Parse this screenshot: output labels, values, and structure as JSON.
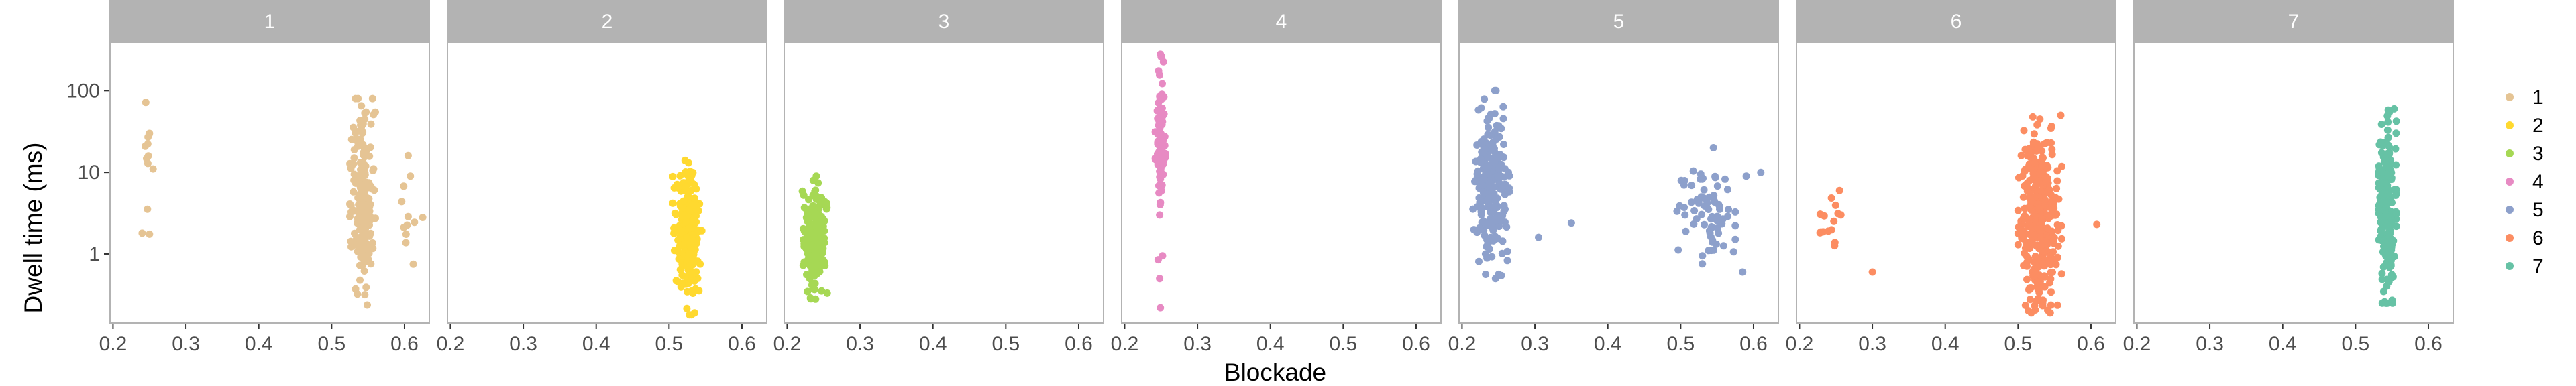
{
  "chart_data": {
    "type": "scatter",
    "xlabel": "Blockade",
    "ylabel": "Dwell time (ms)",
    "x_scale": "linear",
    "y_scale": "log10",
    "xlim": [
      0.195,
      0.635
    ],
    "ylim": [
      0.14,
      400
    ],
    "x_ticks": [
      0.2,
      0.3,
      0.4,
      0.5,
      0.6
    ],
    "y_ticks": [
      1,
      10,
      100
    ],
    "x_tick_labels": [
      "0.2",
      "0.3",
      "0.4",
      "0.5",
      "0.6"
    ],
    "y_tick_labels": [
      "1",
      "10",
      "100"
    ],
    "legend_position": "right",
    "grid": false,
    "strip_background": "#b3b3b3",
    "panel_border": "#b3b3b3",
    "facets": [
      {
        "label": "1",
        "color": "#e5c494",
        "clusters": [
          {
            "n": 7,
            "x": [
              0.238,
              0.252
            ],
            "y": [
              1.7,
              75
            ]
          },
          {
            "n": 190,
            "x": [
              0.525,
              0.56
            ],
            "y": [
              0.18,
              80
            ]
          },
          {
            "n": 8,
            "x": [
              0.59,
              0.625
            ],
            "y": [
              0.7,
              17
            ]
          }
        ],
        "points": [
          [
            0.24,
            1.8
          ],
          [
            0.25,
            1.75
          ],
          [
            0.245,
            72
          ],
          [
            0.25,
            30
          ],
          [
            0.248,
            27
          ],
          [
            0.255,
            11
          ],
          [
            0.605,
            16
          ],
          [
            0.612,
            0.75
          ],
          [
            0.625,
            2.8
          ],
          [
            0.608,
            9
          ]
        ]
      },
      {
        "label": "2",
        "color": "#ffd92f",
        "clusters": [
          {
            "n": 230,
            "x": [
              0.505,
              0.545
            ],
            "y": [
              0.18,
              14
            ]
          }
        ],
        "points": [
          [
            0.522,
            14
          ],
          [
            0.535,
            0.19
          ]
        ]
      },
      {
        "label": "3",
        "color": "#a6d854",
        "clusters": [
          {
            "n": 180,
            "x": [
              0.22,
              0.255
            ],
            "y": [
              0.28,
              9
            ]
          }
        ],
        "points": [
          [
            0.24,
            9
          ],
          [
            0.232,
            0.29
          ]
        ]
      },
      {
        "label": "4",
        "color": "#e78ac3",
        "clusters": [
          {
            "n": 80,
            "x": [
              0.242,
              0.256
            ],
            "y": [
              3,
              280
            ]
          }
        ],
        "points": [
          [
            0.25,
            260
          ],
          [
            0.248,
            3
          ],
          [
            0.246,
            0.85
          ],
          [
            0.252,
            0.95
          ],
          [
            0.248,
            0.5
          ],
          [
            0.249,
            0.22
          ]
        ]
      },
      {
        "label": "5",
        "color": "#8da0cb",
        "clusters": [
          {
            "n": 220,
            "x": [
              0.215,
              0.265
            ],
            "y": [
              0.5,
              100
            ]
          },
          {
            "n": 70,
            "x": [
              0.495,
              0.575
            ],
            "y": [
              0.55,
              20
            ]
          }
        ],
        "points": [
          [
            0.305,
            1.6
          ],
          [
            0.35,
            2.4
          ],
          [
            0.245,
            100
          ],
          [
            0.61,
            10
          ],
          [
            0.59,
            9
          ],
          [
            0.585,
            0.6
          ],
          [
            0.545,
            20
          ]
        ]
      },
      {
        "label": "6",
        "color": "#fc8d62",
        "clusters": [
          {
            "n": 14,
            "x": [
              0.225,
              0.26
            ],
            "y": [
              1.0,
              6
            ]
          },
          {
            "n": 330,
            "x": [
              0.5,
              0.56
            ],
            "y": [
              0.19,
              50
            ]
          }
        ],
        "points": [
          [
            0.3,
            0.6
          ],
          [
            0.608,
            2.3
          ],
          [
            0.53,
            45
          ],
          [
            0.255,
            6
          ]
        ]
      },
      {
        "label": "7",
        "color": "#66c2a5",
        "clusters": [
          {
            "n": 220,
            "x": [
              0.532,
              0.556
            ],
            "y": [
              0.25,
              60
            ]
          }
        ],
        "points": [
          [
            0.545,
            58
          ],
          [
            0.54,
            0.26
          ],
          [
            0.535,
            2.5
          ]
        ]
      }
    ],
    "legend": [
      {
        "label": "1",
        "color": "#e5c494"
      },
      {
        "label": "2",
        "color": "#ffd92f"
      },
      {
        "label": "3",
        "color": "#a6d854"
      },
      {
        "label": "4",
        "color": "#e78ac3"
      },
      {
        "label": "5",
        "color": "#8da0cb"
      },
      {
        "label": "6",
        "color": "#fc8d62"
      },
      {
        "label": "7",
        "color": "#66c2a5"
      }
    ]
  }
}
